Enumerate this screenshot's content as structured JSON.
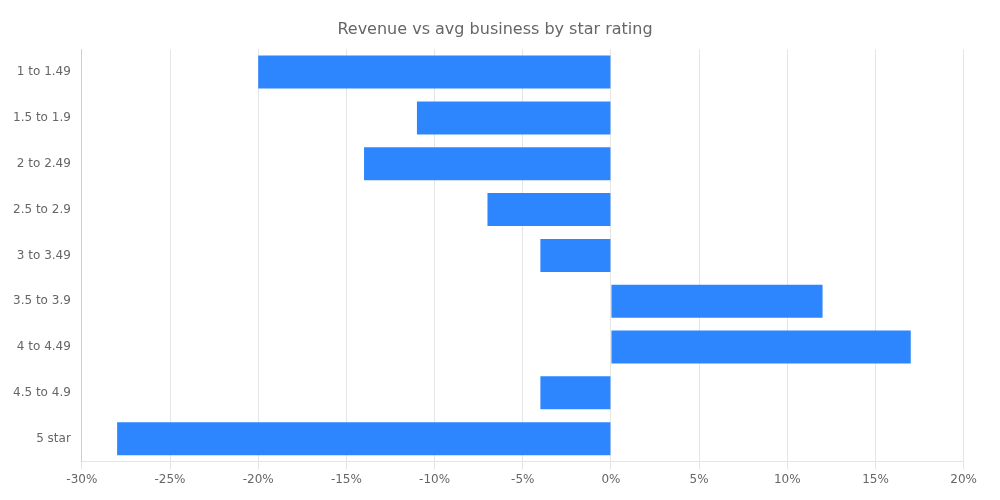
{
  "chart_data": {
    "type": "bar",
    "orientation": "horizontal",
    "title": "Revenue vs avg business by star rating",
    "categories": [
      "1 to 1.49",
      "1.5 to 1.9",
      "2 to 2.49",
      "2.5 to 2.9",
      "3 to 3.49",
      "3.5 to 3.9",
      "4 to 4.49",
      "4.5 to 4.9",
      "5 star"
    ],
    "values": [
      -20,
      -11,
      -14,
      -7,
      -4,
      12,
      17,
      -4,
      -28
    ],
    "color": "#2e86ff",
    "xlim": [
      -30,
      20
    ],
    "xticks": [
      {
        "value": -30,
        "label": "-30%"
      },
      {
        "value": -25,
        "label": "-25%"
      },
      {
        "value": -20,
        "label": "-20%"
      },
      {
        "value": -15,
        "label": "-15%"
      },
      {
        "value": -10,
        "label": "-10%"
      },
      {
        "value": -5,
        "label": "-5%"
      },
      {
        "value": 0,
        "label": "0%"
      },
      {
        "value": 5,
        "label": "5%"
      },
      {
        "value": 10,
        "label": "10%"
      },
      {
        "value": 15,
        "label": "15%"
      },
      {
        "value": 20,
        "label": "20%"
      }
    ],
    "grid": true
  }
}
